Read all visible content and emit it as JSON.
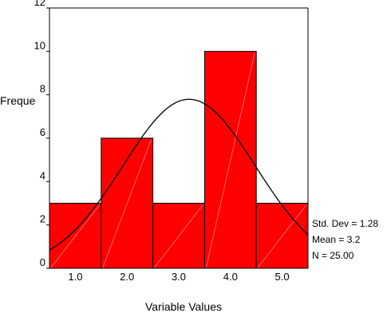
{
  "chart_data": {
    "type": "bar",
    "title": "",
    "xlabel": "Variable Values",
    "ylabel": "Freque",
    "categories": [
      "1.0",
      "2.0",
      "3.0",
      "4.0",
      "5.0"
    ],
    "values": [
      3,
      6,
      3,
      10,
      3
    ],
    "ylim": [
      0,
      12
    ],
    "xlim": [
      0.5,
      5.5
    ],
    "y_ticks": [
      "0",
      "2",
      "4",
      "6",
      "8",
      "10",
      "12"
    ],
    "grid": false,
    "bar_color": "#ff0000",
    "curve_color": "#000000",
    "normal_curve": {
      "mean": 3.2,
      "std_dev": 1.28,
      "n": 25,
      "bin_width": 1
    },
    "stats": {
      "std_dev_label": "Std. Dev = 1.28",
      "mean_label": "Mean = 3.2",
      "n_label": "N = 25.00"
    }
  }
}
